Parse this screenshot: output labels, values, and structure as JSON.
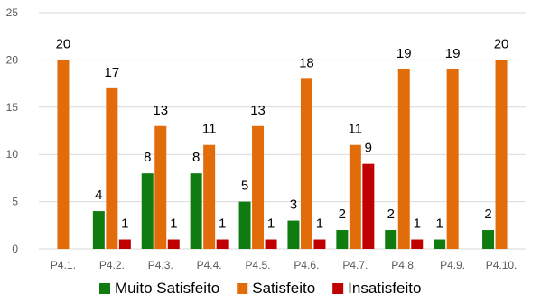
{
  "chart_data": {
    "type": "bar",
    "categories": [
      "P4.1.",
      "P4.2.",
      "P4.3.",
      "P4.4.",
      "P4.5.",
      "P4.6.",
      "P4.7.",
      "P4.8.",
      "P4.9.",
      "P4.10."
    ],
    "series": [
      {
        "name": "Muito Satisfeito",
        "color": "#107C10",
        "values": [
          null,
          4,
          8,
          8,
          5,
          3,
          2,
          2,
          1,
          2
        ]
      },
      {
        "name": "Satisfeito",
        "color": "#E36C0A",
        "values": [
          20,
          17,
          13,
          11,
          13,
          18,
          11,
          19,
          19,
          20
        ]
      },
      {
        "name": "Insatisfeito",
        "color": "#C00000",
        "values": [
          null,
          1,
          1,
          1,
          1,
          1,
          9,
          1,
          null,
          null
        ]
      }
    ],
    "ylim": [
      0,
      25
    ],
    "yticks": [
      0,
      5,
      10,
      15,
      20,
      25
    ],
    "grid": true,
    "legend": "bottom"
  }
}
